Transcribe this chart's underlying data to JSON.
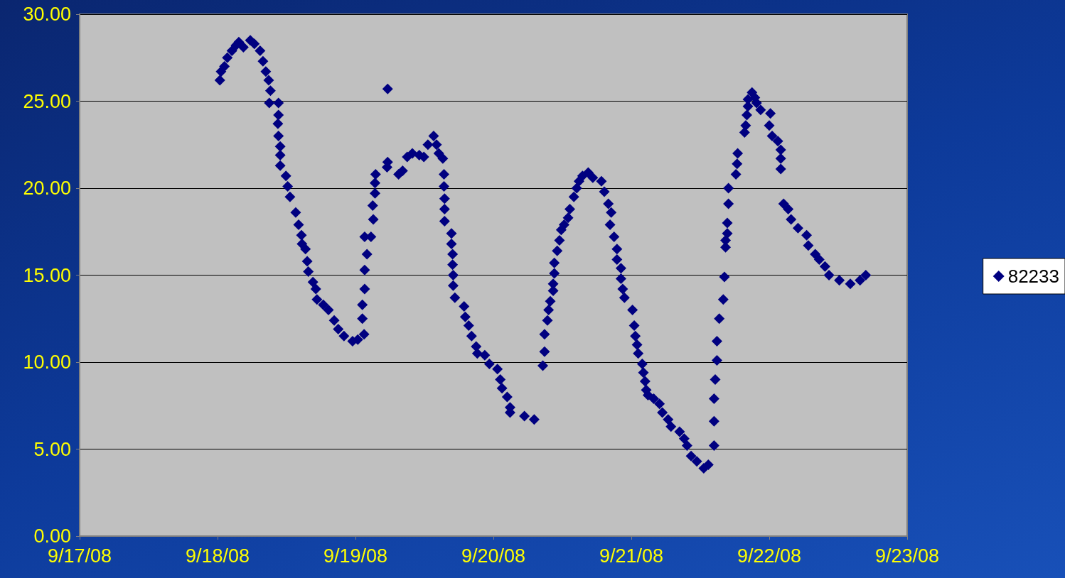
{
  "chart_data": {
    "type": "scatter",
    "marker": "diamond",
    "grid": "y",
    "legend": "right",
    "xlim": [
      "--09-17",
      "--09-23"
    ],
    "xticks": [
      {
        "value": "--09-17",
        "label": "9/17/08"
      },
      {
        "value": "--09-18",
        "label": "9/18/08"
      },
      {
        "value": "--09-19",
        "label": "9/19/08"
      },
      {
        "value": "--09-20",
        "label": "9/20/08"
      },
      {
        "value": "--09-21",
        "label": "9/21/08"
      },
      {
        "value": "--09-22",
        "label": "9/22/08"
      },
      {
        "value": "--09-23",
        "label": "9/23/08"
      }
    ],
    "ylim": [
      0,
      30
    ],
    "yticks": [
      {
        "value": 0,
        "label": "0.00"
      },
      {
        "value": 5,
        "label": "5.00"
      },
      {
        "value": 10,
        "label": "10.00"
      },
      {
        "value": 15,
        "label": "15.00"
      },
      {
        "value": 20,
        "label": "20.00"
      },
      {
        "value": 25,
        "label": "25.00"
      },
      {
        "value": 30,
        "label": "30.00"
      }
    ],
    "series": [
      {
        "name": "82233",
        "color": "#000080",
        "x": [
          "--09-18T00:24",
          "--09-18T00:36",
          "--09-18T01:12",
          "--09-18T01:42",
          "--09-18T02:30",
          "--09-18T03:12",
          "--09-18T03:42",
          "--09-18T04:30",
          "--09-18T05:42",
          "--09-18T06:24",
          "--09-18T07:24",
          "--09-18T07:54",
          "--09-18T08:24",
          "--09-18T08:54",
          "--09-18T09:12",
          "--09-18T09:00",
          "--09-18T10:36",
          "--09-18T10:36",
          "--09-18T10:30",
          "--09-18T10:36",
          "--09-18T10:54",
          "--09-18T10:54",
          "--09-18T10:54",
          "--09-18T11:54",
          "--09-18T12:12",
          "--09-18T12:36",
          "--09-18T13:36",
          "--09-18T14:06",
          "--09-18T14:36",
          "--09-18T14:42",
          "--09-18T15:18",
          "--09-18T15:36",
          "--09-18T15:48",
          "--09-18T16:36",
          "--09-18T17:06",
          "--09-18T17:18",
          "--09-18T18:24",
          "--09-18T19:18",
          "--09-18T20:18",
          "--09-18T21:00",
          "--09-18T22:00",
          "--09-18T23:30",
          "--09-19T00:24",
          "--09-19T01:30",
          "--09-19T01:12",
          "--09-19T01:12",
          "--09-19T01:36",
          "--09-19T01:36",
          "--09-19T02:00",
          "--09-19T01:36",
          "--09-19T02:42",
          "--09-19T03:06",
          "--09-19T03:00",
          "--09-19T03:24",
          "--09-19T03:24",
          "--09-19T03:30",
          "--09-19T05:36",
          "--09-19T05:36",
          "--09-19T05:30",
          "--09-19T07:30",
          "--09-19T08:12",
          "--09-19T09:00",
          "--09-19T09:54",
          "--09-19T11:06",
          "--09-19T11:54",
          "--09-19T12:36",
          "--09-19T13:36",
          "--09-19T14:06",
          "--09-19T14:30",
          "--09-19T15:12",
          "--09-19T15:24",
          "--09-19T15:24",
          "--09-19T15:30",
          "--09-19T15:30",
          "--09-19T15:30",
          "--09-19T16:42",
          "--09-19T16:42",
          "--09-19T16:54",
          "--09-19T16:54",
          "--09-19T17:00",
          "--09-19T17:00",
          "--09-19T17:18",
          "--09-19T18:54",
          "--09-19T19:06",
          "--09-19T19:42",
          "--09-19T20:12",
          "--09-19T21:00",
          "--09-19T21:12",
          "--09-19T22:30",
          "--09-19T23:18",
          "--09-20T00:42",
          "--09-20T01:12",
          "--09-20T01:30",
          "--09-20T02:24",
          "--09-20T02:54",
          "--09-20T02:54",
          "--09-20T05:24",
          "--09-20T07:06",
          "--09-20T08:36",
          "--09-20T08:54",
          "--09-20T08:54",
          "--09-20T09:24",
          "--09-20T09:36",
          "--09-20T09:54",
          "--09-20T10:24",
          "--09-20T10:24",
          "--09-20T10:36",
          "--09-20T10:36",
          "--09-20T11:06",
          "--09-20T11:30",
          "--09-20T11:48",
          "--09-20T12:18",
          "--09-20T13:00",
          "--09-20T13:18",
          "--09-20T14:00",
          "--09-20T14:30",
          "--09-20T14:54",
          "--09-20T15:30",
          "--09-20T16:30",
          "--09-20T17:18",
          "--09-20T18:48",
          "--09-20T19:18",
          "--09-20T20:00",
          "--09-20T20:30",
          "--09-20T20:18",
          "--09-20T21:00",
          "--09-20T21:30",
          "--09-20T21:30",
          "--09-20T22:12",
          "--09-20T22:12",
          "--09-20T22:30",
          "--09-20T22:48",
          "--09-21T00:12",
          "--09-21T00:30",
          "--09-21T00:42",
          "--09-21T01:00",
          "--09-21T01:12",
          "--09-21T01:54",
          "--09-21T02:06",
          "--09-21T02:24",
          "--09-21T02:36",
          "--09-21T02:54",
          "--09-21T03:54",
          "--09-21T04:54",
          "--09-21T05:24",
          "--09-21T06:24",
          "--09-21T06:54",
          "--09-21T08:24",
          "--09-21T09:12",
          "--09-21T09:42",
          "--09-21T10:24",
          "--09-21T11:24",
          "--09-21T12:36",
          "--09-21T13:24",
          "--09-21T14:24",
          "--09-21T14:24",
          "--09-21T14:24",
          "--09-21T14:36",
          "--09-21T14:54",
          "--09-21T14:54",
          "--09-21T15:18",
          "--09-21T16:00",
          "--09-21T16:12",
          "--09-21T16:24",
          "--09-21T16:24",
          "--09-21T16:42",
          "--09-21T16:42",
          "--09-21T16:54",
          "--09-21T16:54",
          "--09-21T18:12",
          "--09-21T18:24",
          "--09-21T18:30",
          "--09-21T19:42",
          "--09-21T19:54",
          "--09-21T20:06",
          "--09-21T20:18",
          "--09-21T20:18",
          "--09-21T21:00",
          "--09-21T21:30",
          "--09-21T21:48",
          "--09-21T22:30",
          "--09-22T00:12",
          "--09-22T00:00",
          "--09-22T00:30",
          "--09-22T01:30",
          "--09-22T02:00",
          "--09-22T02:00",
          "--09-22T02:00",
          "--09-22T02:30",
          "--09-22T03:18",
          "--09-22T03:48",
          "--09-22T05:00",
          "--09-22T06:30",
          "--09-22T06:48",
          "--09-22T08:00",
          "--09-22T08:42",
          "--09-22T09:42",
          "--09-22T10:24",
          "--09-22T12:12",
          "--09-22T14:06",
          "--09-22T15:48",
          "--09-22T16:48"
        ],
        "values": [
          26.2,
          26.7,
          27.0,
          27.5,
          27.9,
          28.2,
          28.4,
          28.1,
          28.5,
          28.3,
          27.9,
          27.3,
          26.7,
          26.2,
          25.6,
          24.9,
          24.9,
          24.2,
          23.7,
          23.0,
          22.4,
          21.9,
          21.3,
          20.7,
          20.1,
          19.5,
          18.6,
          17.9,
          17.3,
          16.8,
          16.5,
          15.8,
          15.2,
          14.6,
          14.2,
          13.6,
          13.3,
          13.0,
          12.4,
          11.9,
          11.5,
          11.2,
          11.3,
          11.6,
          12.5,
          13.3,
          14.2,
          15.3,
          16.2,
          17.2,
          17.2,
          18.2,
          19.0,
          19.7,
          20.3,
          20.8,
          25.7,
          21.5,
          21.2,
          20.8,
          21.0,
          21.8,
          22.0,
          21.9,
          21.8,
          22.5,
          23.0,
          22.5,
          22.0,
          21.7,
          20.8,
          20.1,
          19.4,
          18.8,
          18.1,
          17.4,
          16.8,
          16.2,
          15.6,
          15.0,
          14.4,
          13.7,
          13.2,
          12.6,
          12.1,
          11.5,
          10.9,
          10.5,
          10.4,
          9.9,
          9.6,
          9.0,
          8.5,
          8.0,
          7.4,
          7.1,
          6.9,
          6.7,
          9.8,
          10.6,
          11.6,
          12.4,
          13.0,
          13.5,
          14.1,
          14.5,
          15.1,
          15.7,
          16.4,
          17.0,
          17.6,
          17.9,
          18.3,
          18.8,
          19.5,
          20.0,
          20.4,
          20.7,
          20.9,
          20.6,
          20.4,
          19.8,
          19.1,
          18.6,
          17.9,
          17.2,
          16.5,
          15.9,
          15.4,
          14.8,
          14.2,
          13.7,
          13.0,
          12.1,
          11.5,
          11.0,
          10.5,
          9.9,
          9.4,
          8.9,
          8.4,
          8.1,
          7.9,
          7.6,
          7.1,
          6.7,
          6.3,
          6.0,
          5.6,
          5.2,
          4.6,
          4.3,
          3.9,
          4.1,
          5.2,
          6.6,
          7.9,
          9.0,
          10.1,
          11.2,
          12.5,
          13.6,
          14.9,
          16.6,
          17.0,
          17.4,
          18.0,
          19.1,
          20.0,
          20.8,
          21.4,
          22.0,
          23.2,
          23.6,
          24.2,
          24.7,
          25.1,
          25.5,
          25.2,
          24.9,
          24.5,
          24.3,
          23.6,
          23.0,
          22.7,
          22.2,
          21.7,
          21.1,
          19.1,
          18.8,
          18.2,
          17.7,
          17.3,
          16.7,
          16.2,
          15.9,
          15.5,
          15.0,
          14.7,
          14.5,
          14.7,
          15.0
        ]
      }
    ]
  }
}
